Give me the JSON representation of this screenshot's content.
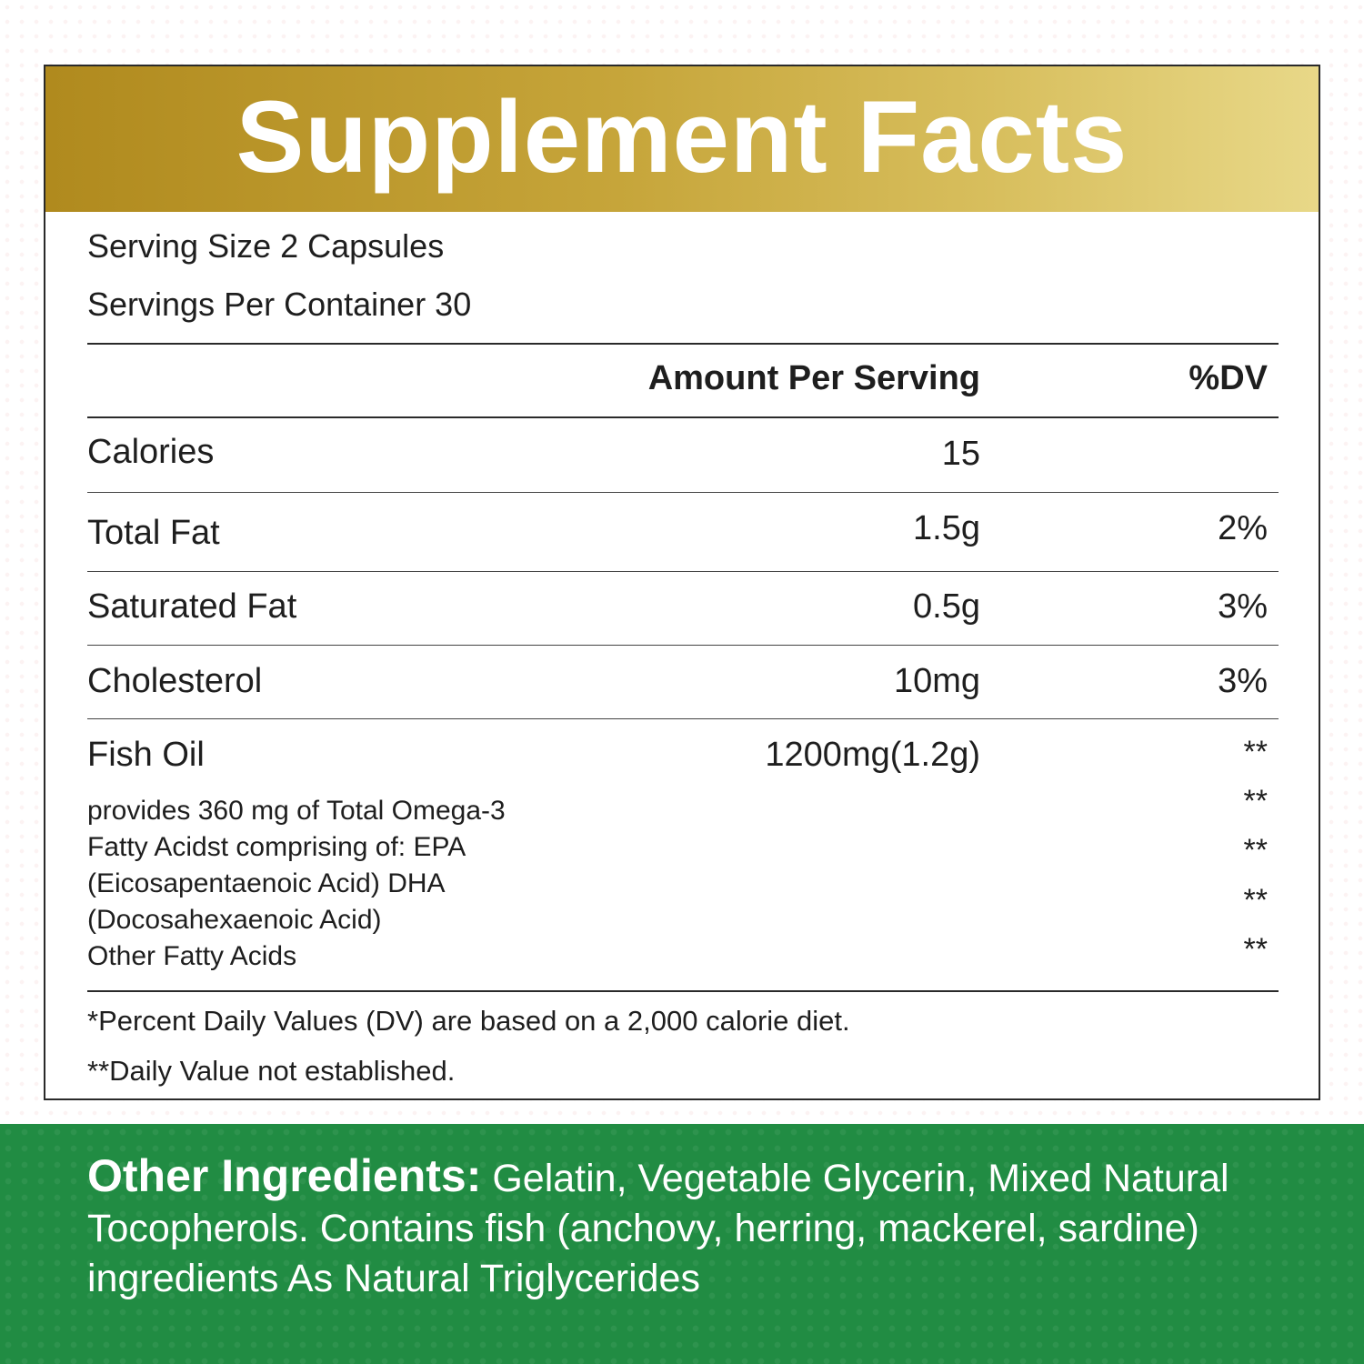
{
  "title": "Supplement Facts",
  "serving_size": "Serving Size 2 Capsules",
  "servings_per_container": "Servings Per Container 30",
  "headers": {
    "amount": "Amount Per Serving",
    "dv": "%DV"
  },
  "rows": [
    {
      "name": "Calories",
      "amount": "15",
      "dv": ""
    },
    {
      "name": "Total Fat",
      "amount": "1.5g",
      "dv": "2%"
    },
    {
      "name": "Saturated Fat",
      "amount": "0.5g",
      "dv": "3%"
    },
    {
      "name": "Cholesterol",
      "amount": "10mg",
      "dv": "3%"
    },
    {
      "name": "Fish Oil",
      "amount": "1200mg(1.2g)",
      "dv": "**"
    }
  ],
  "fish_oil_details": [
    "provides 360 mg of Total Omega-3",
    "Fatty Acidst comprising of: EPA",
    "(Eicosapentaenoic Acid) DHA",
    "(Docosahexaenoic Acid)",
    "Other Fatty Acids"
  ],
  "detail_dv": [
    "**",
    "**",
    "**",
    "**"
  ],
  "footnotes": [
    "*Percent Daily Values (DV) are based on a 2,000 calorie diet.",
    "**Daily Value not established."
  ],
  "other_ingredients": {
    "label": "Other Ingredients:",
    "text": "Gelatin, Vegetable Glycerin, Mixed Natural Tocopherols. Contains fish (anchovy, herring, mackerel, sardine) ingredients As Natural Triglycerides"
  },
  "colors": {
    "banner_start": "#b08a1e",
    "banner_end": "#e8d888",
    "green_band": "#218c43"
  }
}
